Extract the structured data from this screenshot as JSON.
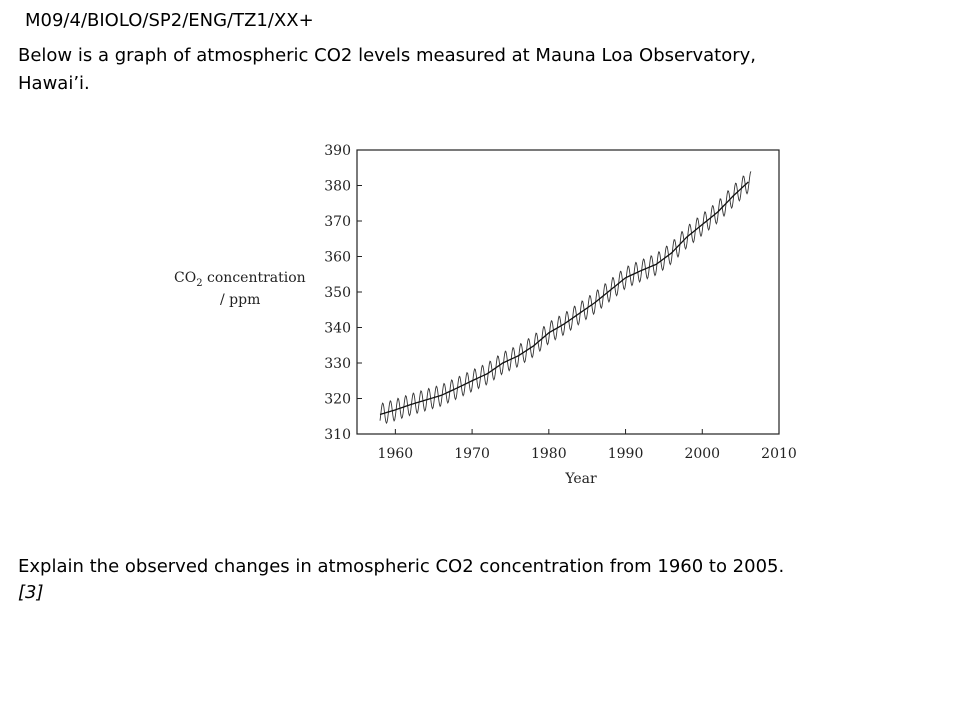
{
  "header": {
    "code": "M09/4/BIOLO/SP2/ENG/TZ1/XX+",
    "intro_line1": "Below is a graph of atmospheric CO2 levels measured at Mauna Loa Observatory,",
    "intro_line2": "Hawai’i."
  },
  "question": {
    "text": "Explain the observed changes in atmospheric CO2 concentration from 1960 to 2005.",
    "marks": "[3]"
  },
  "chart_data": {
    "type": "line",
    "xlabel": "Year",
    "ylabel_main": "CO",
    "ylabel_sub": "2",
    "ylabel_rest": " concentration",
    "ylabel_line2": "/ ppm",
    "xlim": [
      1955,
      2010
    ],
    "ylim": [
      310,
      390
    ],
    "xticks": [
      1960,
      1970,
      1980,
      1990,
      2000,
      2010
    ],
    "yticks": [
      310,
      320,
      330,
      340,
      350,
      360,
      370,
      380,
      390
    ],
    "grid": false,
    "series": [
      {
        "kind": "trend",
        "x": [
          1958,
          1960,
          1962,
          1964,
          1966,
          1968,
          1970,
          1972,
          1974,
          1976,
          1978,
          1980,
          1982,
          1984,
          1986,
          1988,
          1990,
          1992,
          1994,
          1996,
          1998,
          2000,
          2002,
          2004,
          2006
        ],
        "values": [
          315.5,
          316.8,
          318.3,
          319.6,
          320.9,
          322.9,
          325.0,
          327.0,
          330.0,
          332.0,
          334.8,
          338.5,
          341.0,
          344.0,
          347.0,
          350.5,
          354.0,
          356.0,
          357.8,
          361.0,
          365.5,
          369.0,
          372.5,
          377.0,
          381.0
        ]
      },
      {
        "kind": "seasonal",
        "seasonal_amplitude": 3
      }
    ]
  }
}
